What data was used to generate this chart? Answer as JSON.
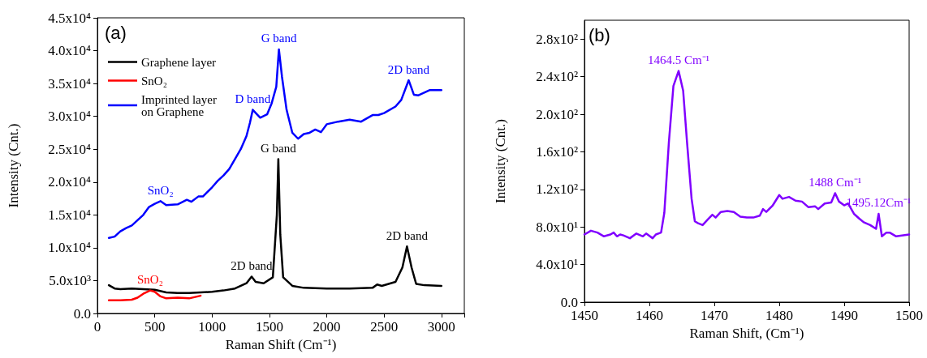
{
  "chart_data": [
    {
      "type": "line",
      "title": "(a)",
      "xlabel": "Raman Shift (Cm⁻¹)",
      "ylabel": "Intensity (Cnt.)",
      "xlim": [
        0,
        3200
      ],
      "xticks": [
        0,
        500,
        1000,
        1500,
        2000,
        2500,
        3000
      ],
      "ylim": [
        0,
        45000
      ],
      "yticks": [
        {
          "value": 0,
          "label": "0.0"
        },
        {
          "value": 5000,
          "label": "5.0x10³"
        },
        {
          "value": 10000,
          "label": "1.0x10⁴"
        },
        {
          "value": 15000,
          "label": "1.5x10⁴"
        },
        {
          "value": 20000,
          "label": "2.0x10⁴"
        },
        {
          "value": 25000,
          "label": "2.5x10⁴"
        },
        {
          "value": 30000,
          "label": "3.0x10⁴"
        },
        {
          "value": 35000,
          "label": "3.5x10⁴"
        },
        {
          "value": 40000,
          "label": "4.0x10⁴"
        },
        {
          "value": 45000,
          "label": "4.5x10⁴"
        }
      ],
      "grid": false,
      "legend": "top left",
      "marker": "none",
      "line_style": "solid",
      "series": [
        {
          "name": "Graphene layer",
          "color": "#000000",
          "x": [
            100,
            150,
            200,
            300,
            400,
            500,
            600,
            700,
            800,
            900,
            1000,
            1100,
            1200,
            1300,
            1345,
            1380,
            1450,
            1530,
            1565,
            1578,
            1595,
            1620,
            1700,
            1800,
            2000,
            2200,
            2400,
            2440,
            2480,
            2600,
            2660,
            2700,
            2740,
            2780,
            2850,
            3000
          ],
          "values": [
            4300,
            3800,
            3700,
            3800,
            3700,
            3600,
            3200,
            3100,
            3100,
            3200,
            3300,
            3500,
            3800,
            4600,
            5600,
            4800,
            4600,
            5500,
            15000,
            23500,
            12000,
            5500,
            4200,
            3900,
            3800,
            3800,
            3900,
            4400,
            4200,
            4800,
            7000,
            10200,
            7000,
            4500,
            4300,
            4200
          ]
        },
        {
          "name": "SnO₂",
          "color": "#ff0000",
          "x": [
            100,
            200,
            300,
            350,
            400,
            460,
            500,
            550,
            600,
            700,
            800,
            900
          ],
          "values": [
            2000,
            2000,
            2100,
            2400,
            3000,
            3500,
            3300,
            2600,
            2300,
            2400,
            2300,
            2700
          ]
        },
        {
          "name": "Imprinted layer\non Graphene",
          "color": "#0000ff",
          "x": [
            100,
            150,
            200,
            250,
            300,
            350,
            400,
            450,
            500,
            550,
            600,
            700,
            780,
            820,
            880,
            920,
            1000,
            1050,
            1100,
            1150,
            1200,
            1250,
            1300,
            1330,
            1355,
            1420,
            1480,
            1520,
            1560,
            1583,
            1610,
            1650,
            1700,
            1750,
            1800,
            1850,
            1900,
            1950,
            2000,
            2100,
            2200,
            2300,
            2400,
            2450,
            2500,
            2600,
            2650,
            2715,
            2760,
            2800,
            2900,
            3000
          ],
          "values": [
            11500,
            11700,
            12500,
            13000,
            13400,
            14200,
            15000,
            16200,
            16700,
            17100,
            16500,
            16600,
            17300,
            17000,
            17800,
            17800,
            19200,
            20200,
            21000,
            22000,
            23500,
            25000,
            27000,
            29000,
            31000,
            29800,
            30300,
            32000,
            34500,
            40200,
            36000,
            31000,
            27500,
            26600,
            27300,
            27500,
            28000,
            27600,
            28800,
            29200,
            29500,
            29200,
            30200,
            30200,
            30500,
            31500,
            32500,
            35500,
            33300,
            33200,
            34000,
            34000
          ]
        }
      ],
      "annotations": [
        {
          "text": "G band",
          "x": 1583,
          "y": 40200
        },
        {
          "text": "2D band",
          "x": 2715,
          "y": 35500
        },
        {
          "text": "D band",
          "x": 1355,
          "y": 31000
        },
        {
          "text": "SnO₂",
          "x": 550,
          "y": 17100
        },
        {
          "text": "G band",
          "x": 1578,
          "y": 23500
        },
        {
          "text": "2D band",
          "x": 1345,
          "y": 5600
        },
        {
          "text": "2D band",
          "x": 2700,
          "y": 10200
        },
        {
          "text": "SnO₂",
          "x": 460,
          "y": 3500
        }
      ]
    },
    {
      "type": "line",
      "title": "(b)",
      "xlabel": "Raman Shift, (Cm⁻¹)",
      "ylabel": "Intensity (Cnt.)",
      "xlim": [
        1450,
        1500
      ],
      "xticks": [
        1450,
        1460,
        1470,
        1480,
        1490,
        1500
      ],
      "ylim": [
        0,
        300
      ],
      "yticks": [
        {
          "value": 0,
          "label": "0.0"
        },
        {
          "value": 40,
          "label": "4.0x10¹"
        },
        {
          "value": 80,
          "label": "8.0x10¹"
        },
        {
          "value": 120,
          "label": "1.2x10²"
        },
        {
          "value": 160,
          "label": "1.6x10²"
        },
        {
          "value": 200,
          "label": "2.0x10²"
        },
        {
          "value": 240,
          "label": "2.4x10²"
        },
        {
          "value": 280,
          "label": "2.8x10²"
        }
      ],
      "grid": false,
      "marker": "none",
      "line_style": "solid",
      "series": [
        {
          "color": "#8000ff",
          "x": [
            1450,
            1451,
            1452,
            1453,
            1454,
            1454.5,
            1455,
            1455.5,
            1456,
            1457,
            1458,
            1459,
            1459.5,
            1460.5,
            1461,
            1461.8,
            1462.3,
            1463,
            1463.7,
            1464.5,
            1465.2,
            1465.8,
            1466.5,
            1467,
            1467.5,
            1468.2,
            1469,
            1469.7,
            1470.2,
            1471,
            1472,
            1473,
            1474,
            1475,
            1476,
            1477,
            1477.5,
            1478,
            1479,
            1480,
            1480.5,
            1481.5,
            1482.5,
            1483.5,
            1484.5,
            1485.5,
            1486,
            1487,
            1488,
            1488.6,
            1489.2,
            1490,
            1490.6,
            1491.5,
            1492.3,
            1493,
            1494,
            1494.9,
            1495.3,
            1495.8,
            1496.5,
            1497,
            1498,
            1500
          ],
          "values": [
            72,
            76,
            74,
            70,
            72,
            74,
            70,
            72,
            71,
            68,
            73,
            70,
            73,
            68,
            72,
            74,
            95,
            170,
            230,
            246,
            225,
            170,
            110,
            86,
            84,
            82,
            88,
            93,
            90,
            96,
            97,
            96,
            91,
            90,
            90,
            92,
            99,
            96,
            103,
            114,
            110,
            112,
            108,
            107,
            101,
            102,
            99,
            105,
            106,
            116,
            107,
            103,
            105,
            94,
            89,
            85,
            82,
            78,
            94,
            70,
            74,
            74,
            70,
            72
          ]
        }
      ],
      "annotations": [
        {
          "text": "1464.5 Cm⁻¹",
          "x": 1464.5,
          "y": 246
        },
        {
          "text": "1488 Cm⁻¹",
          "x": 1488.6,
          "y": 116
        },
        {
          "text": "1495.12Cm⁻¹",
          "x": 1495.3,
          "y": 94
        }
      ]
    }
  ]
}
